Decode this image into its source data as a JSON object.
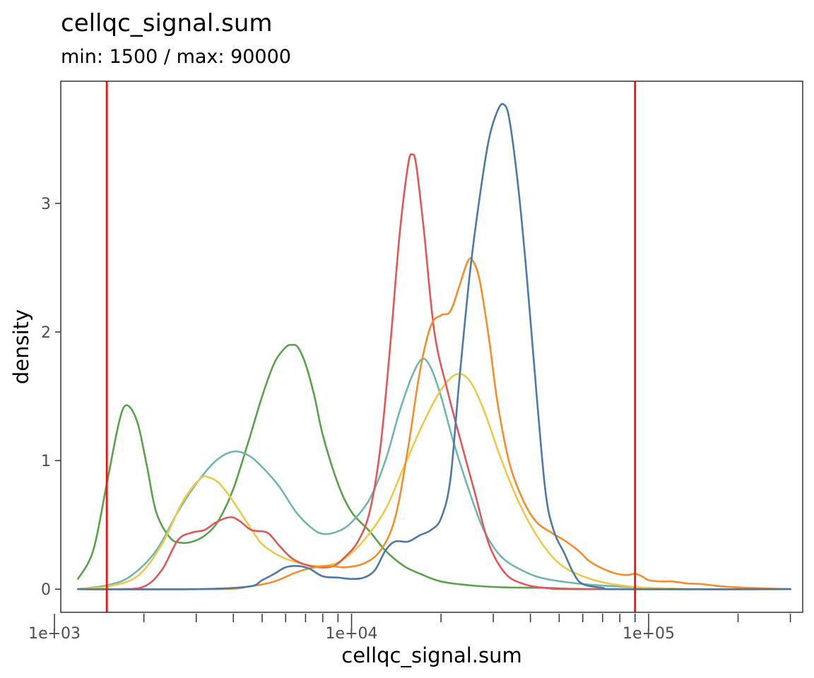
{
  "chart_data": {
    "type": "line",
    "title": "cellqc_signal.sum",
    "subtitle": "min: 1500 / max: 90000",
    "xlabel": "cellqc_signal.sum",
    "ylabel": "density",
    "x_scale": "log10",
    "xlim": [
      1050,
      330000
    ],
    "ylim": [
      -0.18,
      3.95
    ],
    "x_ticks": [
      {
        "value": 1000,
        "label": "1e+03"
      },
      {
        "value": 10000,
        "label": "1e+04"
      },
      {
        "value": 100000,
        "label": "1e+05"
      }
    ],
    "x_minor_ticks": [
      2000,
      3000,
      4000,
      5000,
      6000,
      7000,
      8000,
      9000,
      20000,
      30000,
      40000,
      50000,
      60000,
      70000,
      80000,
      90000,
      200000,
      300000
    ],
    "y_ticks": [
      {
        "value": 0,
        "label": "0"
      },
      {
        "value": 1,
        "label": "1"
      },
      {
        "value": 2,
        "label": "2"
      },
      {
        "value": 3,
        "label": "3"
      }
    ],
    "grid": false,
    "legend": "none",
    "vlines": [
      {
        "value": 1500,
        "color": "#ee1111"
      },
      {
        "value": 90000,
        "color": "#ee1111"
      }
    ],
    "series": [
      {
        "color": "#5aa14b",
        "points": [
          [
            1200,
            0.08
          ],
          [
            1350,
            0.3
          ],
          [
            1500,
            0.82
          ],
          [
            1650,
            1.3
          ],
          [
            1750,
            1.43
          ],
          [
            1900,
            1.3
          ],
          [
            2050,
            0.95
          ],
          [
            2200,
            0.6
          ],
          [
            2450,
            0.4
          ],
          [
            2700,
            0.36
          ],
          [
            3000,
            0.38
          ],
          [
            3300,
            0.44
          ],
          [
            3600,
            0.55
          ],
          [
            4000,
            0.78
          ],
          [
            4500,
            1.15
          ],
          [
            5000,
            1.5
          ],
          [
            5500,
            1.76
          ],
          [
            6000,
            1.88
          ],
          [
            6300,
            1.9
          ],
          [
            6600,
            1.88
          ],
          [
            7000,
            1.75
          ],
          [
            7500,
            1.5
          ],
          [
            8000,
            1.2
          ],
          [
            9000,
            0.82
          ],
          [
            10000,
            0.6
          ],
          [
            11500,
            0.45
          ],
          [
            13000,
            0.3
          ],
          [
            15000,
            0.18
          ],
          [
            17000,
            0.12
          ],
          [
            20000,
            0.06
          ],
          [
            25000,
            0.03
          ],
          [
            32000,
            0.015
          ],
          [
            45000,
            0.01
          ],
          [
            70000,
            0.0
          ],
          [
            300000,
            0.0
          ]
        ]
      },
      {
        "color": "#71b5ad",
        "points": [
          [
            1200,
            0.0
          ],
          [
            1500,
            0.03
          ],
          [
            1800,
            0.1
          ],
          [
            2200,
            0.3
          ],
          [
            2600,
            0.6
          ],
          [
            3000,
            0.82
          ],
          [
            3500,
            1.0
          ],
          [
            4000,
            1.07
          ],
          [
            4500,
            1.04
          ],
          [
            5000,
            0.95
          ],
          [
            5700,
            0.8
          ],
          [
            6500,
            0.6
          ],
          [
            7300,
            0.48
          ],
          [
            8000,
            0.43
          ],
          [
            9000,
            0.45
          ],
          [
            10000,
            0.52
          ],
          [
            11500,
            0.7
          ],
          [
            13000,
            1.0
          ],
          [
            14500,
            1.38
          ],
          [
            16000,
            1.66
          ],
          [
            17300,
            1.79
          ],
          [
            18500,
            1.72
          ],
          [
            20000,
            1.5
          ],
          [
            22000,
            1.15
          ],
          [
            25000,
            0.75
          ],
          [
            28000,
            0.45
          ],
          [
            32000,
            0.25
          ],
          [
            38000,
            0.14
          ],
          [
            45000,
            0.08
          ],
          [
            60000,
            0.04
          ],
          [
            80000,
            0.02
          ],
          [
            100000,
            0.01
          ],
          [
            150000,
            0.0
          ],
          [
            300000,
            0.0
          ]
        ]
      },
      {
        "color": "#edc948",
        "points": [
          [
            1200,
            0.0
          ],
          [
            1500,
            0.02
          ],
          [
            1900,
            0.1
          ],
          [
            2300,
            0.35
          ],
          [
            2700,
            0.68
          ],
          [
            3100,
            0.86
          ],
          [
            3300,
            0.87
          ],
          [
            3600,
            0.82
          ],
          [
            4000,
            0.68
          ],
          [
            4500,
            0.5
          ],
          [
            5000,
            0.35
          ],
          [
            5700,
            0.26
          ],
          [
            6500,
            0.21
          ],
          [
            7500,
            0.18
          ],
          [
            8500,
            0.19
          ],
          [
            9500,
            0.24
          ],
          [
            11000,
            0.38
          ],
          [
            13000,
            0.62
          ],
          [
            15000,
            0.95
          ],
          [
            17500,
            1.3
          ],
          [
            20000,
            1.55
          ],
          [
            22500,
            1.67
          ],
          [
            25000,
            1.62
          ],
          [
            28000,
            1.38
          ],
          [
            32000,
            1.0
          ],
          [
            37000,
            0.65
          ],
          [
            43000,
            0.38
          ],
          [
            50000,
            0.2
          ],
          [
            60000,
            0.1
          ],
          [
            75000,
            0.04
          ],
          [
            100000,
            0.01
          ],
          [
            150000,
            0.0
          ],
          [
            300000,
            0.0
          ]
        ]
      },
      {
        "color": "#e15759",
        "points": [
          [
            1200,
            0.0
          ],
          [
            1600,
            0.0
          ],
          [
            2000,
            0.02
          ],
          [
            2300,
            0.15
          ],
          [
            2600,
            0.38
          ],
          [
            2900,
            0.44
          ],
          [
            3200,
            0.46
          ],
          [
            3500,
            0.52
          ],
          [
            3900,
            0.56
          ],
          [
            4200,
            0.53
          ],
          [
            4600,
            0.46
          ],
          [
            5200,
            0.44
          ],
          [
            5700,
            0.34
          ],
          [
            6300,
            0.24
          ],
          [
            7000,
            0.19
          ],
          [
            7800,
            0.17
          ],
          [
            8700,
            0.18
          ],
          [
            9500,
            0.25
          ],
          [
            10500,
            0.37
          ],
          [
            11500,
            0.6
          ],
          [
            12500,
            1.1
          ],
          [
            13500,
            1.9
          ],
          [
            14500,
            2.75
          ],
          [
            15500,
            3.3
          ],
          [
            16000,
            3.38
          ],
          [
            16500,
            3.3
          ],
          [
            17500,
            2.8
          ],
          [
            19000,
            2.0
          ],
          [
            21000,
            1.55
          ],
          [
            23000,
            1.2
          ],
          [
            26000,
            0.75
          ],
          [
            29000,
            0.35
          ],
          [
            33000,
            0.12
          ],
          [
            38000,
            0.04
          ],
          [
            45000,
            0.01
          ],
          [
            60000,
            0.0
          ],
          [
            300000,
            0.0
          ]
        ]
      },
      {
        "color": "#f28e2b",
        "points": [
          [
            1200,
            0.0
          ],
          [
            3500,
            0.0
          ],
          [
            4500,
            0.02
          ],
          [
            5500,
            0.06
          ],
          [
            6500,
            0.13
          ],
          [
            7500,
            0.17
          ],
          [
            8500,
            0.18
          ],
          [
            9500,
            0.17
          ],
          [
            11000,
            0.2
          ],
          [
            12500,
            0.3
          ],
          [
            14000,
            0.55
          ],
          [
            15500,
            1.1
          ],
          [
            17000,
            1.7
          ],
          [
            18500,
            2.05
          ],
          [
            20000,
            2.13
          ],
          [
            21500,
            2.16
          ],
          [
            23000,
            2.35
          ],
          [
            24500,
            2.54
          ],
          [
            25500,
            2.56
          ],
          [
            27000,
            2.4
          ],
          [
            29000,
            1.95
          ],
          [
            31000,
            1.45
          ],
          [
            34000,
            0.98
          ],
          [
            38000,
            0.68
          ],
          [
            42000,
            0.52
          ],
          [
            47000,
            0.44
          ],
          [
            52000,
            0.38
          ],
          [
            58000,
            0.3
          ],
          [
            63000,
            0.22
          ],
          [
            70000,
            0.16
          ],
          [
            78000,
            0.12
          ],
          [
            85000,
            0.11
          ],
          [
            90000,
            0.12
          ],
          [
            95000,
            0.1
          ],
          [
            100000,
            0.07
          ],
          [
            110000,
            0.06
          ],
          [
            120000,
            0.06
          ],
          [
            135000,
            0.045
          ],
          [
            150000,
            0.04
          ],
          [
            180000,
            0.02
          ],
          [
            220000,
            0.01
          ],
          [
            300000,
            0.0
          ]
        ]
      },
      {
        "color": "#4e79a7",
        "points": [
          [
            1200,
            0.0
          ],
          [
            3000,
            0.0
          ],
          [
            4500,
            0.02
          ],
          [
            5000,
            0.07
          ],
          [
            5500,
            0.12
          ],
          [
            6000,
            0.17
          ],
          [
            6600,
            0.18
          ],
          [
            7200,
            0.16
          ],
          [
            8000,
            0.1
          ],
          [
            9000,
            0.09
          ],
          [
            10000,
            0.08
          ],
          [
            11000,
            0.09
          ],
          [
            12000,
            0.15
          ],
          [
            13000,
            0.3
          ],
          [
            14000,
            0.37
          ],
          [
            15500,
            0.37
          ],
          [
            17000,
            0.42
          ],
          [
            18500,
            0.46
          ],
          [
            20000,
            0.55
          ],
          [
            21500,
            0.85
          ],
          [
            23000,
            1.6
          ],
          [
            25000,
            2.45
          ],
          [
            27000,
            3.05
          ],
          [
            29000,
            3.5
          ],
          [
            31000,
            3.72
          ],
          [
            32500,
            3.77
          ],
          [
            34000,
            3.65
          ],
          [
            36500,
            3.1
          ],
          [
            39000,
            2.4
          ],
          [
            42000,
            1.5
          ],
          [
            45000,
            0.75
          ],
          [
            48000,
            0.45
          ],
          [
            52000,
            0.28
          ],
          [
            56000,
            0.12
          ],
          [
            60000,
            0.04
          ],
          [
            70000,
            0.01
          ],
          [
            80000,
            0.0
          ],
          [
            300000,
            0.0
          ]
        ]
      }
    ]
  }
}
